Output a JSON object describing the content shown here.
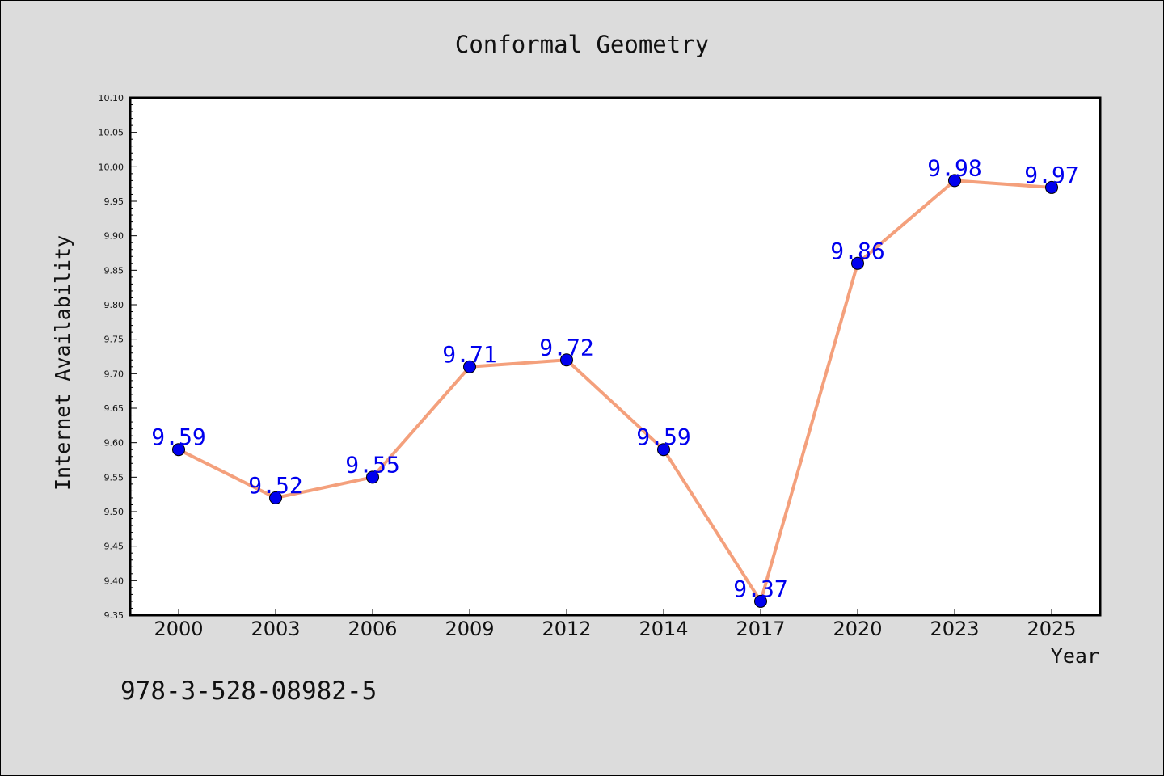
{
  "colors": {
    "background": "#dcdcdc",
    "plot_area": "#ffffff",
    "line": "#f4a07c",
    "marker": "#0000ee",
    "data_label": "#0000ee"
  },
  "footer_text": "978-3-528-08982-5",
  "chart_data": {
    "type": "line",
    "title": "Conformal Geometry",
    "xlabel": "Year",
    "ylabel": "Internet Availability",
    "categories": [
      "2000",
      "2003",
      "2006",
      "2009",
      "2012",
      "2014",
      "2017",
      "2020",
      "2023",
      "2025"
    ],
    "series": [
      {
        "values": [
          9.59,
          9.52,
          9.55,
          9.71,
          9.72,
          9.59,
          9.37,
          9.86,
          9.98,
          9.97
        ]
      }
    ],
    "data_labels": [
      "9.59",
      "9.52",
      "9.55",
      "9.71",
      "9.72",
      "9.59",
      "9.37",
      "9.86",
      "9.98",
      "9.97"
    ],
    "ylim": [
      9.35,
      10.1
    ],
    "yticks": [
      "9.35",
      "9.40",
      "9.45",
      "9.50",
      "9.55",
      "9.60",
      "9.65",
      "9.70",
      "9.75",
      "9.80",
      "9.85",
      "9.90",
      "9.95",
      "10.00",
      "10.05",
      "10.10"
    ],
    "grid": false,
    "legend": "none",
    "marker": "circle"
  }
}
